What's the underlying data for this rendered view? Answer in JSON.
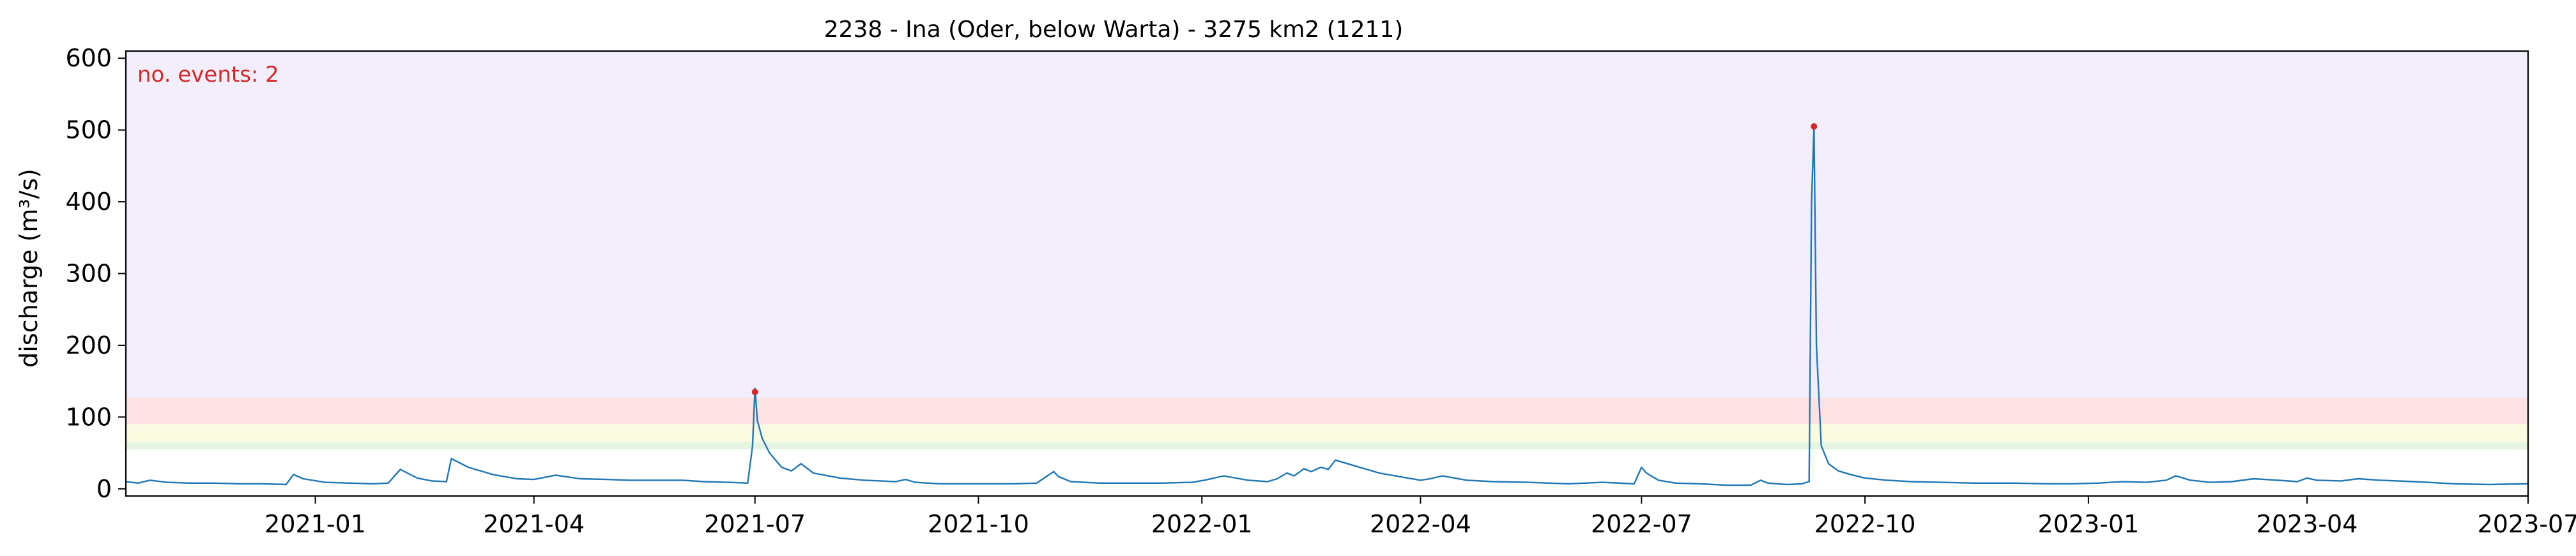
{
  "chart_data": {
    "type": "line",
    "title": "2238 - Ina (Oder, below Warta) - 3275 km2 (1211)",
    "xlabel": "",
    "ylabel": "discharge (m³/s)",
    "x_range": [
      "2020-10-15",
      "2023-07-01"
    ],
    "ylim": [
      -10,
      610
    ],
    "grid": false,
    "x_ticks": [
      "2021-01",
      "2021-04",
      "2021-07",
      "2021-10",
      "2022-01",
      "2022-04",
      "2022-07",
      "2022-10",
      "2023-01",
      "2023-04",
      "2023-07"
    ],
    "y_ticks": [
      0,
      100,
      200,
      300,
      400,
      500,
      600
    ],
    "annotation": "no. events: 2",
    "colors": {
      "series": "#1f77b4",
      "event_marker": "#d62728",
      "annotation": "#d62728",
      "band_top": "#f2eefb",
      "band_red": "#fde2e4",
      "band_yellow": "#fbfbe2",
      "band_green": "#e6f4e2"
    },
    "threshold_bands": [
      {
        "from": 127,
        "to": 610,
        "color_key": "band_top"
      },
      {
        "from": 90,
        "to": 127,
        "color_key": "band_red"
      },
      {
        "from": 65,
        "to": 90,
        "color_key": "band_yellow"
      },
      {
        "from": 55,
        "to": 65,
        "color_key": "band_green"
      }
    ],
    "series": [
      {
        "x": [
          "2020-10-15",
          "2020-10-20",
          "2020-10-25",
          "2020-11-01",
          "2020-11-10",
          "2020-11-20",
          "2020-12-01",
          "2020-12-10",
          "2020-12-20",
          "2020-12-23",
          "2020-12-27",
          "2021-01-05",
          "2021-01-15",
          "2021-01-25",
          "2021-01-31",
          "2021-02-05",
          "2021-02-12",
          "2021-02-18",
          "2021-02-24",
          "2021-02-26",
          "2021-03-05",
          "2021-03-15",
          "2021-03-25",
          "2021-04-01",
          "2021-04-10",
          "2021-04-20",
          "2021-05-01",
          "2021-05-10",
          "2021-05-20",
          "2021-06-01",
          "2021-06-10",
          "2021-06-20",
          "2021-06-28",
          "2021-06-30",
          "2021-07-01",
          "2021-07-02",
          "2021-07-04",
          "2021-07-07",
          "2021-07-12",
          "2021-07-16",
          "2021-07-20",
          "2021-07-25",
          "2021-08-05",
          "2021-08-15",
          "2021-08-28",
          "2021-09-01",
          "2021-09-05",
          "2021-09-15",
          "2021-10-01",
          "2021-10-15",
          "2021-10-25",
          "2021-11-01",
          "2021-11-03",
          "2021-11-08",
          "2021-11-20",
          "2021-12-01",
          "2021-12-15",
          "2021-12-28",
          "2022-01-02",
          "2022-01-10",
          "2022-01-20",
          "2022-01-28",
          "2022-02-01",
          "2022-02-05",
          "2022-02-08",
          "2022-02-12",
          "2022-02-15",
          "2022-02-19",
          "2022-02-22",
          "2022-02-25",
          "2022-03-05",
          "2022-03-15",
          "2022-03-25",
          "2022-04-01",
          "2022-04-05",
          "2022-04-10",
          "2022-04-20",
          "2022-05-01",
          "2022-05-15",
          "2022-06-01",
          "2022-06-15",
          "2022-06-28",
          "2022-07-01",
          "2022-07-03",
          "2022-07-08",
          "2022-07-15",
          "2022-07-25",
          "2022-08-05",
          "2022-08-15",
          "2022-08-19",
          "2022-08-22",
          "2022-08-30",
          "2022-09-05",
          "2022-09-08",
          "2022-09-09",
          "2022-09-10",
          "2022-09-11",
          "2022-09-13",
          "2022-09-16",
          "2022-09-20",
          "2022-09-25",
          "2022-10-01",
          "2022-10-10",
          "2022-10-20",
          "2022-11-01",
          "2022-11-15",
          "2022-12-01",
          "2022-12-15",
          "2022-12-25",
          "2023-01-05",
          "2023-01-15",
          "2023-01-25",
          "2023-02-02",
          "2023-02-06",
          "2023-02-12",
          "2023-02-20",
          "2023-03-01",
          "2023-03-10",
          "2023-03-20",
          "2023-03-28",
          "2023-04-01",
          "2023-04-05",
          "2023-04-15",
          "2023-04-22",
          "2023-05-01",
          "2023-05-15",
          "2023-06-01",
          "2023-06-15",
          "2023-07-01"
        ],
        "y": [
          10,
          8,
          12,
          9,
          8,
          8,
          7,
          7,
          6,
          20,
          14,
          9,
          8,
          7,
          8,
          27,
          15,
          11,
          10,
          42,
          30,
          20,
          14,
          13,
          19,
          14,
          13,
          12,
          12,
          12,
          10,
          9,
          8,
          60,
          140,
          95,
          70,
          50,
          30,
          25,
          35,
          22,
          15,
          12,
          10,
          13,
          9,
          7,
          7,
          7,
          8,
          24,
          17,
          10,
          8,
          8,
          8,
          9,
          12,
          18,
          12,
          10,
          14,
          22,
          18,
          28,
          24,
          30,
          27,
          40,
          32,
          22,
          16,
          12,
          14,
          18,
          12,
          10,
          9,
          7,
          9,
          7,
          30,
          22,
          12,
          8,
          7,
          5,
          5,
          12,
          8,
          6,
          7,
          10,
          400,
          505,
          200,
          60,
          35,
          25,
          20,
          15,
          12,
          10,
          9,
          8,
          8,
          7,
          7,
          8,
          10,
          9,
          12,
          18,
          12,
          9,
          10,
          14,
          12,
          10,
          15,
          12,
          11,
          14,
          12,
          10,
          7,
          6,
          7
        ]
      }
    ],
    "events": [
      {
        "x": "2021-07-01",
        "y": 135
      },
      {
        "x": "2022-09-10",
        "y": 505
      }
    ]
  }
}
